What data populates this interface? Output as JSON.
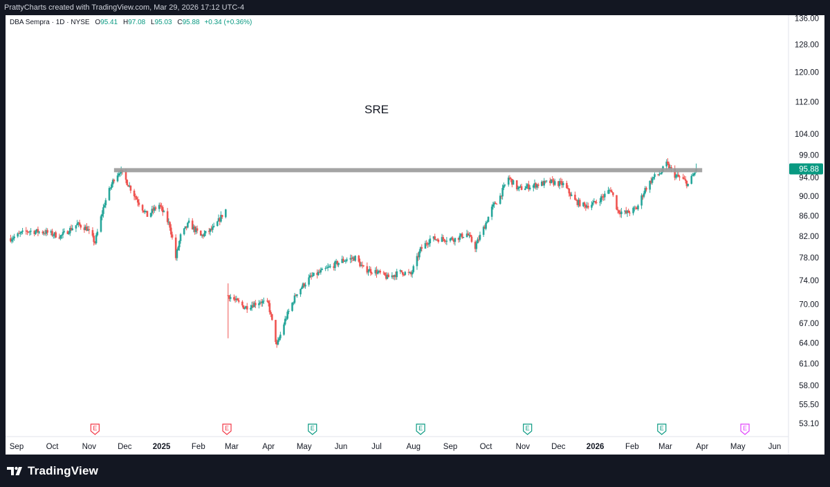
{
  "header": {
    "caption": "PrattyCharts created with TradingView.com, Mar 29, 2026 17:12 UTC-4"
  },
  "legend": {
    "symbol": "DBA Sempra · 1D · NYSE",
    "open_label": "O",
    "open": "95.41",
    "high_label": "H",
    "high": "97.08",
    "low_label": "L",
    "low": "95.03",
    "close_label": "C",
    "close": "95.88",
    "change": "+0.34 (+0.36%)"
  },
  "footer": {
    "brand": "TradingView"
  },
  "colors": {
    "up": "#26a69a",
    "down": "#ef5350",
    "resistance": "#9b9b9b",
    "last_price_bg": "#089981",
    "earnings_red": "#f23645",
    "earnings_green": "#089981",
    "earnings_future": "#e040fb",
    "background": "#ffffff"
  },
  "chart_data": {
    "type": "candlestick",
    "title": "SRE",
    "symbol": "SRE",
    "interval": "1D",
    "scale": "log",
    "ylim": [
      52.5,
      137
    ],
    "price_ticks": [
      "136.00",
      "128.00",
      "120.00",
      "112.00",
      "104.00",
      "99.00",
      "94.00",
      "90.00",
      "86.00",
      "82.00",
      "78.00",
      "74.00",
      "70.00",
      "67.00",
      "64.00",
      "61.00",
      "58.00",
      "55.50",
      "53.10"
    ],
    "x_labels": [
      {
        "label": "Sep",
        "date": "2024-09-01"
      },
      {
        "label": "Oct",
        "date": "2024-10-01"
      },
      {
        "label": "Nov",
        "date": "2024-11-01"
      },
      {
        "label": "Dec",
        "date": "2024-12-01"
      },
      {
        "label": "2025",
        "date": "2025-01-01",
        "bold": true
      },
      {
        "label": "Feb",
        "date": "2025-02-01"
      },
      {
        "label": "Mar",
        "date": "2025-03-01"
      },
      {
        "label": "Apr",
        "date": "2025-04-01"
      },
      {
        "label": "May",
        "date": "2025-05-01"
      },
      {
        "label": "Jun",
        "date": "2025-06-01"
      },
      {
        "label": "Jul",
        "date": "2025-07-01"
      },
      {
        "label": "Aug",
        "date": "2025-08-01"
      },
      {
        "label": "Sep",
        "date": "2025-09-01"
      },
      {
        "label": "Oct",
        "date": "2025-10-01"
      },
      {
        "label": "Nov",
        "date": "2025-11-01"
      },
      {
        "label": "Dec",
        "date": "2025-12-01"
      },
      {
        "label": "2026",
        "date": "2026-01-01",
        "bold": true
      },
      {
        "label": "Feb",
        "date": "2026-02-01"
      },
      {
        "label": "Mar",
        "date": "2026-03-01"
      },
      {
        "label": "Apr",
        "date": "2026-04-01"
      },
      {
        "label": "May",
        "date": "2026-05-01"
      },
      {
        "label": "Jun",
        "date": "2026-06-01"
      }
    ],
    "price_path": [
      [
        "2024-08-27",
        81.6
      ],
      [
        "2024-09-10",
        83.0
      ],
      [
        "2024-09-25",
        82.8
      ],
      [
        "2024-10-08",
        82.0
      ],
      [
        "2024-10-22",
        84.3
      ],
      [
        "2024-10-30",
        83.5
      ],
      [
        "2024-11-06",
        80.8
      ],
      [
        "2024-11-14",
        88.5
      ],
      [
        "2024-11-22",
        93.8
      ],
      [
        "2024-11-27",
        95.5
      ],
      [
        "2024-12-04",
        92.5
      ],
      [
        "2024-12-12",
        89.0
      ],
      [
        "2024-12-20",
        86.0
      ],
      [
        "2024-12-30",
        88.2
      ],
      [
        "2025-01-08",
        84.0
      ],
      [
        "2025-01-13",
        78.0
      ],
      [
        "2025-01-17",
        82.0
      ],
      [
        "2025-01-24",
        84.5
      ],
      [
        "2025-02-03",
        82.0
      ],
      [
        "2025-02-14",
        83.5
      ],
      [
        "2025-02-24",
        87.2
      ],
      [
        "2025-02-26",
        71.5
      ],
      [
        "2025-03-05",
        70.5
      ],
      [
        "2025-03-12",
        69.5
      ],
      [
        "2025-03-25",
        70.5
      ],
      [
        "2025-04-01",
        70.0
      ],
      [
        "2025-04-08",
        63.5
      ],
      [
        "2025-04-15",
        67.5
      ],
      [
        "2025-04-25",
        72.0
      ],
      [
        "2025-05-06",
        74.5
      ],
      [
        "2025-05-20",
        76.0
      ],
      [
        "2025-06-02",
        77.5
      ],
      [
        "2025-06-13",
        78.0
      ],
      [
        "2025-06-20",
        76.0
      ],
      [
        "2025-07-01",
        75.5
      ],
      [
        "2025-07-10",
        74.5
      ],
      [
        "2025-07-22",
        75.5
      ],
      [
        "2025-07-30",
        75.0
      ],
      [
        "2025-08-07",
        79.5
      ],
      [
        "2025-08-15",
        81.5
      ],
      [
        "2025-08-25",
        81.5
      ],
      [
        "2025-09-05",
        81.5
      ],
      [
        "2025-09-15",
        82.5
      ],
      [
        "2025-09-22",
        80.0
      ],
      [
        "2025-09-30",
        84.0
      ],
      [
        "2025-10-06",
        87.5
      ],
      [
        "2025-10-13",
        90.0
      ],
      [
        "2025-10-20",
        94.0
      ],
      [
        "2025-10-28",
        91.5
      ],
      [
        "2025-11-05",
        92.0
      ],
      [
        "2025-11-14",
        92.5
      ],
      [
        "2025-11-25",
        93.0
      ],
      [
        "2025-12-05",
        92.5
      ],
      [
        "2025-12-15",
        89.0
      ],
      [
        "2025-12-23",
        88.0
      ],
      [
        "2025-12-31",
        88.5
      ],
      [
        "2026-01-08",
        90.0
      ],
      [
        "2026-01-14",
        91.5
      ],
      [
        "2026-01-20",
        87.0
      ],
      [
        "2026-01-27",
        86.5
      ],
      [
        "2026-02-05",
        87.5
      ],
      [
        "2026-02-12",
        91.5
      ],
      [
        "2026-02-19",
        94.0
      ],
      [
        "2026-02-25",
        95.0
      ],
      [
        "2026-03-02",
        97.0
      ],
      [
        "2026-03-09",
        94.5
      ],
      [
        "2026-03-16",
        93.5
      ],
      [
        "2026-03-20",
        92.5
      ],
      [
        "2026-03-26",
        95.2
      ],
      [
        "2026-03-27",
        95.88
      ]
    ],
    "gaps": [
      {
        "from": "2025-02-24",
        "to": "2025-02-26",
        "open": 71.5,
        "wick_low": 64.7,
        "wick_high": 73.5
      }
    ],
    "resistance_level": 95.6,
    "resistance_start": "2024-11-22",
    "resistance_end": "2026-04-01",
    "last_price": "95.88",
    "earnings": [
      {
        "date": "2024-11-06",
        "type": "reported-miss",
        "label": "E"
      },
      {
        "date": "2025-02-25",
        "type": "reported-miss",
        "label": "E"
      },
      {
        "date": "2025-05-08",
        "type": "reported-beat",
        "label": "E"
      },
      {
        "date": "2025-08-07",
        "type": "reported-beat",
        "label": "E"
      },
      {
        "date": "2025-11-05",
        "type": "reported-beat",
        "label": "E"
      },
      {
        "date": "2026-02-26",
        "type": "reported-beat",
        "label": "E"
      },
      {
        "date": "2026-05-07",
        "type": "upcoming",
        "label": "E"
      }
    ]
  }
}
